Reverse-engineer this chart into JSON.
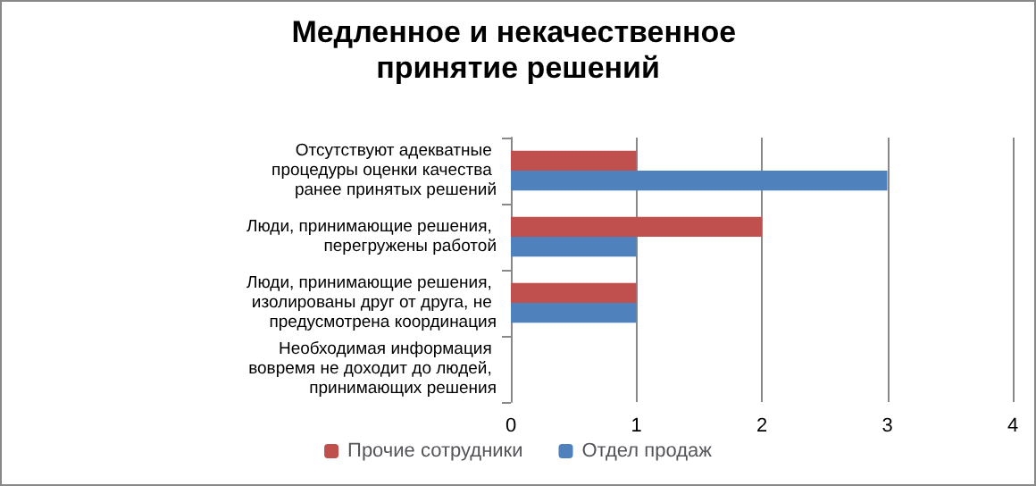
{
  "chart_data": {
    "type": "bar",
    "orientation": "horizontal",
    "title": "Медленное и некачественное принятие решений",
    "categories": [
      "Отсутствуют адекватные процедуры оценки качества ранее принятых решений",
      "Люди, принимающие решения, перегружены работой",
      "Люди, принимающие решения, изолированы друг от друга, не предусмотрена координация",
      "Необходимая информация вовремя не доходит до людей, принимающих решения"
    ],
    "series": [
      {
        "name": "Прочие сотрудники",
        "color": "#c0504d",
        "values": [
          1,
          2,
          1,
          0
        ]
      },
      {
        "name": "Отдел продаж",
        "color": "#4f81bd",
        "values": [
          3,
          1,
          1,
          0
        ]
      }
    ],
    "xlim": [
      0,
      4
    ],
    "xticks": [
      0,
      1,
      2,
      3,
      4
    ],
    "grid": "x",
    "legend": "bottom"
  }
}
